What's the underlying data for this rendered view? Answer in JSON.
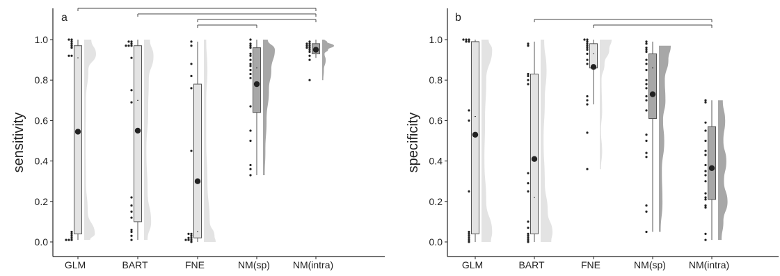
{
  "colors": {
    "light": "#e3e3e3",
    "dark": "#a7a7a7",
    "axis": "#222222",
    "point": "#222222"
  },
  "chart_data": [
    {
      "type": "box",
      "panel_label": "a",
      "xlabel": "",
      "ylabel": "sensitivity",
      "ylim": [
        0,
        1.05
      ],
      "yticks": [
        "0.0",
        "0.2",
        "0.4",
        "0.6",
        "0.8",
        "1.0"
      ],
      "categories": [
        "GLM",
        "BART",
        "FNE",
        "NM(sp)",
        "NM(intra)"
      ],
      "series": [
        {
          "category": "GLM",
          "shade": "light",
          "q1": 0.04,
          "median": 0.91,
          "q3": 0.97,
          "whisker_low": 0.01,
          "whisker_high": 1.0,
          "mean": 0.545,
          "points": [
            1.0,
            1.0,
            0.99,
            0.98,
            0.97,
            0.96,
            0.92,
            0.92,
            0.05,
            0.04,
            0.03,
            0.02,
            0.01,
            0.01,
            0.01
          ],
          "density": [
            [
              0.01,
              0.5
            ],
            [
              0.04,
              0.9
            ],
            [
              0.15,
              0.3
            ],
            [
              0.3,
              0.15
            ],
            [
              0.5,
              0.12
            ],
            [
              0.7,
              0.15
            ],
            [
              0.85,
              0.35
            ],
            [
              0.93,
              1.0
            ],
            [
              1.0,
              0.6
            ]
          ]
        },
        {
          "category": "BART",
          "shade": "light",
          "q1": 0.1,
          "median": 0.7,
          "q3": 0.97,
          "whisker_low": 0.01,
          "whisker_high": 1.0,
          "mean": 0.55,
          "points": [
            0.99,
            0.99,
            0.98,
            0.97,
            0.97,
            0.97,
            0.91,
            0.75,
            0.69,
            0.22,
            0.18,
            0.15,
            0.12,
            0.06,
            0.05,
            0.03,
            0.01
          ],
          "density": [
            [
              0.01,
              0.3
            ],
            [
              0.1,
              0.6
            ],
            [
              0.25,
              0.3
            ],
            [
              0.45,
              0.2
            ],
            [
              0.65,
              0.35
            ],
            [
              0.8,
              0.4
            ],
            [
              0.92,
              0.8
            ],
            [
              1.0,
              0.5
            ]
          ]
        },
        {
          "category": "FNE",
          "shade": "light",
          "q1": 0.02,
          "median": 0.05,
          "q3": 0.78,
          "whisker_low": 0.0,
          "whisker_high": 0.99,
          "mean": 0.3,
          "points": [
            0.99,
            0.97,
            0.88,
            0.82,
            0.76,
            0.45,
            0.04,
            0.04,
            0.03,
            0.02,
            0.02,
            0.01,
            0.01,
            0.01,
            0.0
          ],
          "density": [
            [
              0.0,
              1.0
            ],
            [
              0.03,
              0.9
            ],
            [
              0.1,
              0.5
            ],
            [
              0.3,
              0.3
            ],
            [
              0.5,
              0.2
            ],
            [
              0.7,
              0.2
            ],
            [
              0.85,
              0.3
            ],
            [
              1.0,
              0.2
            ]
          ]
        },
        {
          "category": "NM(sp)",
          "shade": "dark",
          "q1": 0.64,
          "median": 0.86,
          "q3": 0.96,
          "whisker_low": 0.33,
          "whisker_high": 1.0,
          "mean": 0.78,
          "points": [
            1.0,
            0.98,
            0.97,
            0.96,
            0.93,
            0.92,
            0.9,
            0.88,
            0.87,
            0.85,
            0.83,
            0.81,
            0.67,
            0.55,
            0.5,
            0.38,
            0.36,
            0.33
          ],
          "density": [
            [
              0.33,
              0.15
            ],
            [
              0.45,
              0.2
            ],
            [
              0.6,
              0.3
            ],
            [
              0.75,
              0.5
            ],
            [
              0.85,
              0.7
            ],
            [
              0.95,
              1.0
            ],
            [
              1.0,
              0.4
            ]
          ]
        },
        {
          "category": "NM(intra)",
          "shade": "dark",
          "q1": 0.93,
          "median": 0.96,
          "q3": 0.98,
          "whisker_low": 0.91,
          "whisker_high": 1.0,
          "mean": 0.95,
          "points": [
            0.99,
            0.98,
            0.98,
            0.97,
            0.97,
            0.96,
            0.96,
            0.95,
            0.94,
            0.92,
            0.9,
            0.8
          ],
          "density": [
            [
              0.8,
              0.1
            ],
            [
              0.85,
              0.15
            ],
            [
              0.9,
              0.3
            ],
            [
              0.93,
              0.2
            ],
            [
              0.95,
              0.5
            ],
            [
              0.97,
              1.0
            ],
            [
              0.99,
              0.4
            ],
            [
              1.0,
              0.2
            ]
          ]
        }
      ],
      "brackets": [
        {
          "from": "GLM",
          "to": "NM(intra)",
          "level": 4
        },
        {
          "from": "BART",
          "to": "NM(intra)",
          "level": 3
        },
        {
          "from": "FNE",
          "to": "NM(intra)",
          "level": 2
        },
        {
          "from": "FNE",
          "to": "NM(sp)",
          "level": 1
        }
      ]
    },
    {
      "type": "box",
      "panel_label": "b",
      "xlabel": "",
      "ylabel": "specificity",
      "ylim": [
        0,
        1.05
      ],
      "yticks": [
        "0.0",
        "0.2",
        "0.4",
        "0.6",
        "0.8",
        "1.0"
      ],
      "categories": [
        "GLM",
        "BART",
        "FNE",
        "NM(sp)",
        "NM(intra)"
      ],
      "series": [
        {
          "category": "GLM",
          "shade": "light",
          "q1": 0.04,
          "median": 0.62,
          "q3": 0.99,
          "whisker_low": 0.0,
          "whisker_high": 1.0,
          "mean": 0.53,
          "points": [
            1.0,
            1.0,
            1.0,
            0.99,
            0.99,
            0.65,
            0.6,
            0.25,
            0.05,
            0.04,
            0.03,
            0.02,
            0.01,
            0.0
          ],
          "density": [
            [
              0.0,
              0.8
            ],
            [
              0.05,
              0.9
            ],
            [
              0.2,
              0.4
            ],
            [
              0.4,
              0.25
            ],
            [
              0.6,
              0.3
            ],
            [
              0.8,
              0.4
            ],
            [
              0.95,
              0.9
            ],
            [
              1.0,
              0.6
            ]
          ]
        },
        {
          "category": "BART",
          "shade": "light",
          "q1": 0.04,
          "median": 0.22,
          "q3": 0.83,
          "whisker_low": 0.0,
          "whisker_high": 0.99,
          "mean": 0.41,
          "points": [
            0.98,
            0.97,
            0.83,
            0.82,
            0.8,
            0.78,
            0.34,
            0.29,
            0.25,
            0.1,
            0.07,
            0.04,
            0.03,
            0.02,
            0.01,
            0.0
          ],
          "density": [
            [
              0.0,
              0.9
            ],
            [
              0.05,
              1.0
            ],
            [
              0.15,
              0.6
            ],
            [
              0.3,
              0.35
            ],
            [
              0.5,
              0.25
            ],
            [
              0.7,
              0.35
            ],
            [
              0.85,
              0.5
            ],
            [
              1.0,
              0.3
            ]
          ]
        },
        {
          "category": "FNE",
          "shade": "light",
          "q1": 0.86,
          "median": 0.93,
          "q3": 0.98,
          "whisker_low": 0.68,
          "whisker_high": 1.0,
          "mean": 0.865,
          "points": [
            1.0,
            1.0,
            0.99,
            0.98,
            0.97,
            0.96,
            0.95,
            0.93,
            0.9,
            0.88,
            0.72,
            0.7,
            0.68,
            0.54,
            0.36
          ],
          "density": [
            [
              0.36,
              0.1
            ],
            [
              0.45,
              0.2
            ],
            [
              0.55,
              0.1
            ],
            [
              0.65,
              0.2
            ],
            [
              0.8,
              0.15
            ],
            [
              0.88,
              0.4
            ],
            [
              0.95,
              0.8
            ],
            [
              1.0,
              1.0
            ]
          ]
        },
        {
          "category": "NM(sp)",
          "shade": "dark",
          "q1": 0.61,
          "median": 0.86,
          "q3": 0.93,
          "whisker_low": 0.05,
          "whisker_high": 0.99,
          "mean": 0.73,
          "points": [
            0.99,
            0.98,
            0.96,
            0.95,
            0.94,
            0.9,
            0.88,
            0.85,
            0.8,
            0.78,
            0.76,
            0.72,
            0.7,
            0.65,
            0.53,
            0.5,
            0.44,
            0.42,
            0.18,
            0.15,
            0.05
          ],
          "density": [
            [
              0.05,
              0.15
            ],
            [
              0.2,
              0.3
            ],
            [
              0.35,
              0.25
            ],
            [
              0.5,
              0.45
            ],
            [
              0.6,
              0.35
            ],
            [
              0.7,
              0.55
            ],
            [
              0.8,
              0.5
            ],
            [
              0.9,
              0.8
            ],
            [
              0.97,
              1.0
            ]
          ]
        },
        {
          "category": "NM(intra)",
          "shade": "dark",
          "q1": 0.21,
          "median": 0.37,
          "q3": 0.57,
          "whisker_low": 0.01,
          "whisker_high": 0.7,
          "mean": 0.365,
          "points": [
            0.7,
            0.69,
            0.59,
            0.55,
            0.5,
            0.45,
            0.43,
            0.38,
            0.35,
            0.33,
            0.3,
            0.24,
            0.22,
            0.21,
            0.18,
            0.17,
            0.04,
            0.01
          ],
          "density": [
            [
              0.01,
              0.3
            ],
            [
              0.1,
              0.45
            ],
            [
              0.2,
              0.8
            ],
            [
              0.3,
              0.5
            ],
            [
              0.4,
              0.7
            ],
            [
              0.5,
              0.45
            ],
            [
              0.6,
              0.6
            ],
            [
              0.7,
              0.4
            ]
          ]
        }
      ],
      "brackets": [
        {
          "from": "BART",
          "to": "NM(intra)",
          "level": 2
        },
        {
          "from": "FNE",
          "to": "NM(intra)",
          "level": 1
        }
      ]
    }
  ]
}
